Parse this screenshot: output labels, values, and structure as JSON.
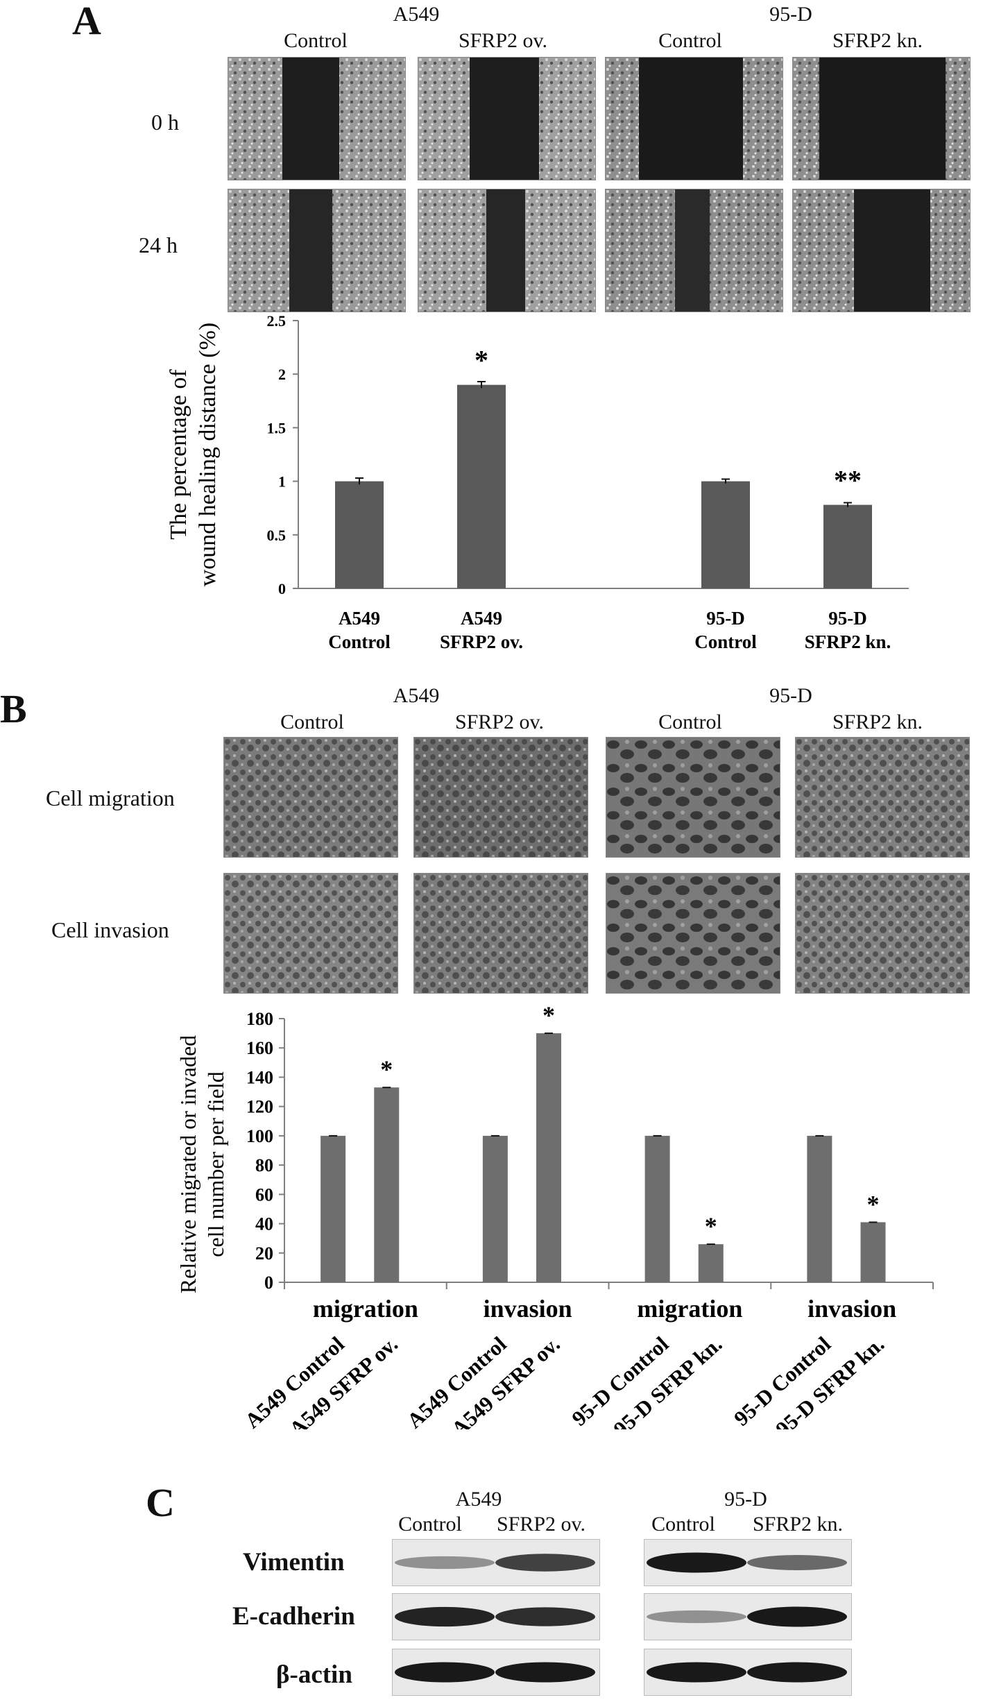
{
  "panelA": {
    "letter": "A",
    "groups": [
      "A549",
      "95-D"
    ],
    "columns": [
      "Control",
      "SFRP2 ov.",
      "Control",
      "SFRP2 kn."
    ],
    "rows": [
      "0 h",
      "24 h"
    ]
  },
  "panelB": {
    "letter": "B",
    "groups": [
      "A549",
      "95-D"
    ],
    "columns": [
      "Control",
      "SFRP2 ov.",
      "Control",
      "SFRP2 kn."
    ],
    "rows": [
      "Cell migration",
      "Cell invasion"
    ]
  },
  "panelC": {
    "letter": "C",
    "groups": [
      "A549",
      "95-D"
    ],
    "columns": [
      "Control",
      "SFRP2 ov.",
      "Control",
      "SFRP2 kn."
    ],
    "rows": [
      "Vimentin",
      "E-cadherin",
      "β-actin"
    ],
    "band_intensity": {
      "Vimentin": [
        0.35,
        0.75,
        0.95,
        0.55
      ],
      "E-cadherin": [
        0.9,
        0.85,
        0.35,
        0.95
      ],
      "β-actin": [
        0.95,
        0.95,
        0.95,
        0.95
      ]
    }
  },
  "colors": {
    "bar": "#595959",
    "barB": "#6e6e6e",
    "axis": "#7f7f7f"
  },
  "chart_data": [
    {
      "type": "bar",
      "categories": [
        "A549\nControl",
        "A549\nSFRP2 ov.",
        "",
        "95-D\nControl",
        "95-D\nSFRP2 kn."
      ],
      "values": [
        1.0,
        1.9,
        null,
        1.0,
        0.78
      ],
      "errors": [
        0.03,
        0.03,
        null,
        0.02,
        0.02
      ],
      "significance": [
        "",
        "*",
        "",
        "",
        "**"
      ],
      "ylabel": "The percentage of\nwound healing distance (%)",
      "ylim": [
        0,
        2.5
      ],
      "yticks": [
        0,
        0.5,
        1,
        1.5,
        2,
        2.5
      ],
      "grid": false,
      "legend": "none"
    },
    {
      "type": "bar",
      "groups": [
        "migration",
        "invasion",
        "migration",
        "invasion"
      ],
      "categories": [
        "A549 Control",
        "A549 SFRP ov.",
        "A549 Control",
        "A549 SFRP ov.",
        "95-D Control",
        "95-D SFRP kn.",
        "95-D Control",
        "95-D SFRP kn."
      ],
      "values": [
        100,
        133,
        100,
        170,
        100,
        26,
        100,
        41
      ],
      "significance": [
        "",
        "*",
        "",
        "*",
        "",
        "*",
        "",
        "*"
      ],
      "ylabel": "Relative migrated or invaded\ncell number per field",
      "ylim": [
        0,
        180
      ],
      "yticks": [
        0,
        20,
        40,
        60,
        80,
        100,
        120,
        140,
        160,
        180
      ],
      "grid": false,
      "legend": "none"
    }
  ]
}
